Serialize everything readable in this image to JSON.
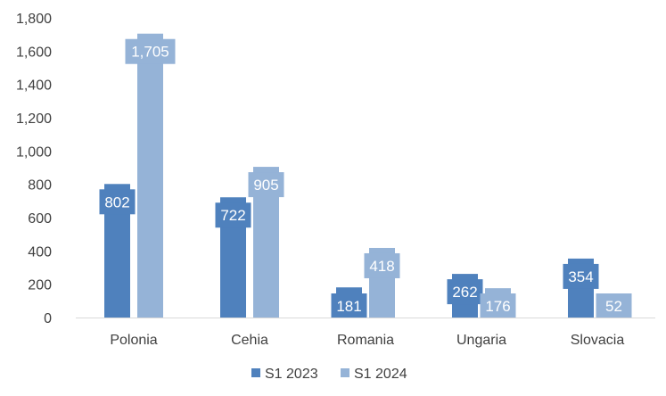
{
  "chart_data": {
    "type": "bar",
    "categories": [
      "Polonia",
      "Cehia",
      "Romania",
      "Ungaria",
      "Slovacia"
    ],
    "series": [
      {
        "name": "S1 2023",
        "color": "#4f81bd",
        "values": [
          802,
          722,
          181,
          262,
          354
        ]
      },
      {
        "name": "S1 2024",
        "color": "#95b3d7",
        "values": [
          1705,
          905,
          418,
          176,
          52
        ]
      }
    ],
    "data_labels": [
      [
        "802",
        "722",
        "181",
        "262",
        "354"
      ],
      [
        "1,705",
        "905",
        "418",
        "176",
        "52"
      ]
    ],
    "y_ticks": [
      "0",
      "200",
      "400",
      "600",
      "800",
      "1,000",
      "1,200",
      "1,400",
      "1,600",
      "1,800"
    ],
    "ylim": [
      0,
      1800
    ],
    "grid": false,
    "legend_position": "bottom"
  }
}
